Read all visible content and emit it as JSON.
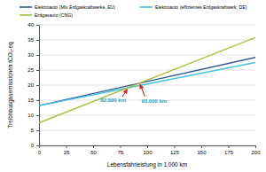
{
  "chart_data": {
    "type": "line",
    "x_label": "Lebensfahrleistung in 1.000 km",
    "y_label": "Treibhausgasemissionen tCO₂-eq",
    "x": [
      0,
      100,
      200
    ],
    "series": [
      {
        "name": "Elektroauto (Mix Erdgaskraftwerke, EU)",
        "color": "#2f5597",
        "values": [
          13.2,
          21.2,
          29.2
        ]
      },
      {
        "name": "Elektroauto (effizientes Erdgaskraftwerk, DE)",
        "color": "#3fc4e4",
        "values": [
          13.2,
          20.35,
          27.5
        ]
      },
      {
        "name": "Erdgasauto (CNG)",
        "color": "#a2c037",
        "values": [
          7.5,
          21.65,
          35.8
        ]
      }
    ],
    "annotations": [
      {
        "text": "93.000 km",
        "x": 93,
        "y": 20.65
      },
      {
        "text": "82.000 km",
        "x": 82,
        "y": 19.1
      }
    ],
    "xlim": [
      0,
      200
    ],
    "xticks": [
      0,
      25,
      50,
      75,
      100,
      125,
      150,
      175,
      200
    ],
    "ylim": [
      0,
      40
    ],
    "yticks": [
      0,
      5,
      10,
      15,
      20,
      25,
      30,
      35,
      40
    ],
    "grid": true,
    "legend": "top"
  }
}
